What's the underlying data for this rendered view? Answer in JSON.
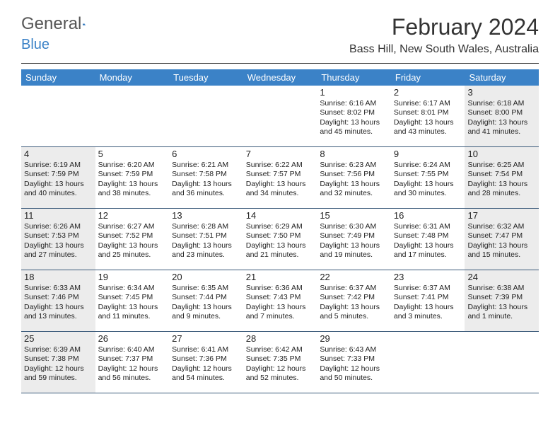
{
  "logo": {
    "word1": "General",
    "word2": "Blue"
  },
  "title": "February 2024",
  "subtitle": "Bass Hill, New South Wales, Australia",
  "colors": {
    "header_bg": "#3b82c7",
    "header_text": "#ffffff",
    "rule": "#3b5a7a",
    "shade": "#ececec",
    "page_bg": "#ffffff",
    "text": "#222222",
    "title_text": "#333333"
  },
  "fonts": {
    "title_size_pt": 24,
    "subtitle_size_pt": 12,
    "dayheader_size_pt": 10,
    "daynum_size_pt": 10,
    "body_size_pt": 8
  },
  "day_names": [
    "Sunday",
    "Monday",
    "Tuesday",
    "Wednesday",
    "Thursday",
    "Friday",
    "Saturday"
  ],
  "weeks": [
    [
      {
        "n": "",
        "sr": "",
        "ss": "",
        "dl": "",
        "sh": false
      },
      {
        "n": "",
        "sr": "",
        "ss": "",
        "dl": "",
        "sh": false
      },
      {
        "n": "",
        "sr": "",
        "ss": "",
        "dl": "",
        "sh": false
      },
      {
        "n": "",
        "sr": "",
        "ss": "",
        "dl": "",
        "sh": false
      },
      {
        "n": "1",
        "sr": "Sunrise: 6:16 AM",
        "ss": "Sunset: 8:02 PM",
        "dl": "Daylight: 13 hours and 45 minutes.",
        "sh": false
      },
      {
        "n": "2",
        "sr": "Sunrise: 6:17 AM",
        "ss": "Sunset: 8:01 PM",
        "dl": "Daylight: 13 hours and 43 minutes.",
        "sh": false
      },
      {
        "n": "3",
        "sr": "Sunrise: 6:18 AM",
        "ss": "Sunset: 8:00 PM",
        "dl": "Daylight: 13 hours and 41 minutes.",
        "sh": true
      }
    ],
    [
      {
        "n": "4",
        "sr": "Sunrise: 6:19 AM",
        "ss": "Sunset: 7:59 PM",
        "dl": "Daylight: 13 hours and 40 minutes.",
        "sh": true
      },
      {
        "n": "5",
        "sr": "Sunrise: 6:20 AM",
        "ss": "Sunset: 7:59 PM",
        "dl": "Daylight: 13 hours and 38 minutes.",
        "sh": false
      },
      {
        "n": "6",
        "sr": "Sunrise: 6:21 AM",
        "ss": "Sunset: 7:58 PM",
        "dl": "Daylight: 13 hours and 36 minutes.",
        "sh": false
      },
      {
        "n": "7",
        "sr": "Sunrise: 6:22 AM",
        "ss": "Sunset: 7:57 PM",
        "dl": "Daylight: 13 hours and 34 minutes.",
        "sh": false
      },
      {
        "n": "8",
        "sr": "Sunrise: 6:23 AM",
        "ss": "Sunset: 7:56 PM",
        "dl": "Daylight: 13 hours and 32 minutes.",
        "sh": false
      },
      {
        "n": "9",
        "sr": "Sunrise: 6:24 AM",
        "ss": "Sunset: 7:55 PM",
        "dl": "Daylight: 13 hours and 30 minutes.",
        "sh": false
      },
      {
        "n": "10",
        "sr": "Sunrise: 6:25 AM",
        "ss": "Sunset: 7:54 PM",
        "dl": "Daylight: 13 hours and 28 minutes.",
        "sh": true
      }
    ],
    [
      {
        "n": "11",
        "sr": "Sunrise: 6:26 AM",
        "ss": "Sunset: 7:53 PM",
        "dl": "Daylight: 13 hours and 27 minutes.",
        "sh": true
      },
      {
        "n": "12",
        "sr": "Sunrise: 6:27 AM",
        "ss": "Sunset: 7:52 PM",
        "dl": "Daylight: 13 hours and 25 minutes.",
        "sh": false
      },
      {
        "n": "13",
        "sr": "Sunrise: 6:28 AM",
        "ss": "Sunset: 7:51 PM",
        "dl": "Daylight: 13 hours and 23 minutes.",
        "sh": false
      },
      {
        "n": "14",
        "sr": "Sunrise: 6:29 AM",
        "ss": "Sunset: 7:50 PM",
        "dl": "Daylight: 13 hours and 21 minutes.",
        "sh": false
      },
      {
        "n": "15",
        "sr": "Sunrise: 6:30 AM",
        "ss": "Sunset: 7:49 PM",
        "dl": "Daylight: 13 hours and 19 minutes.",
        "sh": false
      },
      {
        "n": "16",
        "sr": "Sunrise: 6:31 AM",
        "ss": "Sunset: 7:48 PM",
        "dl": "Daylight: 13 hours and 17 minutes.",
        "sh": false
      },
      {
        "n": "17",
        "sr": "Sunrise: 6:32 AM",
        "ss": "Sunset: 7:47 PM",
        "dl": "Daylight: 13 hours and 15 minutes.",
        "sh": true
      }
    ],
    [
      {
        "n": "18",
        "sr": "Sunrise: 6:33 AM",
        "ss": "Sunset: 7:46 PM",
        "dl": "Daylight: 13 hours and 13 minutes.",
        "sh": true
      },
      {
        "n": "19",
        "sr": "Sunrise: 6:34 AM",
        "ss": "Sunset: 7:45 PM",
        "dl": "Daylight: 13 hours and 11 minutes.",
        "sh": false
      },
      {
        "n": "20",
        "sr": "Sunrise: 6:35 AM",
        "ss": "Sunset: 7:44 PM",
        "dl": "Daylight: 13 hours and 9 minutes.",
        "sh": false
      },
      {
        "n": "21",
        "sr": "Sunrise: 6:36 AM",
        "ss": "Sunset: 7:43 PM",
        "dl": "Daylight: 13 hours and 7 minutes.",
        "sh": false
      },
      {
        "n": "22",
        "sr": "Sunrise: 6:37 AM",
        "ss": "Sunset: 7:42 PM",
        "dl": "Daylight: 13 hours and 5 minutes.",
        "sh": false
      },
      {
        "n": "23",
        "sr": "Sunrise: 6:37 AM",
        "ss": "Sunset: 7:41 PM",
        "dl": "Daylight: 13 hours and 3 minutes.",
        "sh": false
      },
      {
        "n": "24",
        "sr": "Sunrise: 6:38 AM",
        "ss": "Sunset: 7:39 PM",
        "dl": "Daylight: 13 hours and 1 minute.",
        "sh": true
      }
    ],
    [
      {
        "n": "25",
        "sr": "Sunrise: 6:39 AM",
        "ss": "Sunset: 7:38 PM",
        "dl": "Daylight: 12 hours and 59 minutes.",
        "sh": true
      },
      {
        "n": "26",
        "sr": "Sunrise: 6:40 AM",
        "ss": "Sunset: 7:37 PM",
        "dl": "Daylight: 12 hours and 56 minutes.",
        "sh": false
      },
      {
        "n": "27",
        "sr": "Sunrise: 6:41 AM",
        "ss": "Sunset: 7:36 PM",
        "dl": "Daylight: 12 hours and 54 minutes.",
        "sh": false
      },
      {
        "n": "28",
        "sr": "Sunrise: 6:42 AM",
        "ss": "Sunset: 7:35 PM",
        "dl": "Daylight: 12 hours and 52 minutes.",
        "sh": false
      },
      {
        "n": "29",
        "sr": "Sunrise: 6:43 AM",
        "ss": "Sunset: 7:33 PM",
        "dl": "Daylight: 12 hours and 50 minutes.",
        "sh": false
      },
      {
        "n": "",
        "sr": "",
        "ss": "",
        "dl": "",
        "sh": false
      },
      {
        "n": "",
        "sr": "",
        "ss": "",
        "dl": "",
        "sh": false
      }
    ]
  ]
}
